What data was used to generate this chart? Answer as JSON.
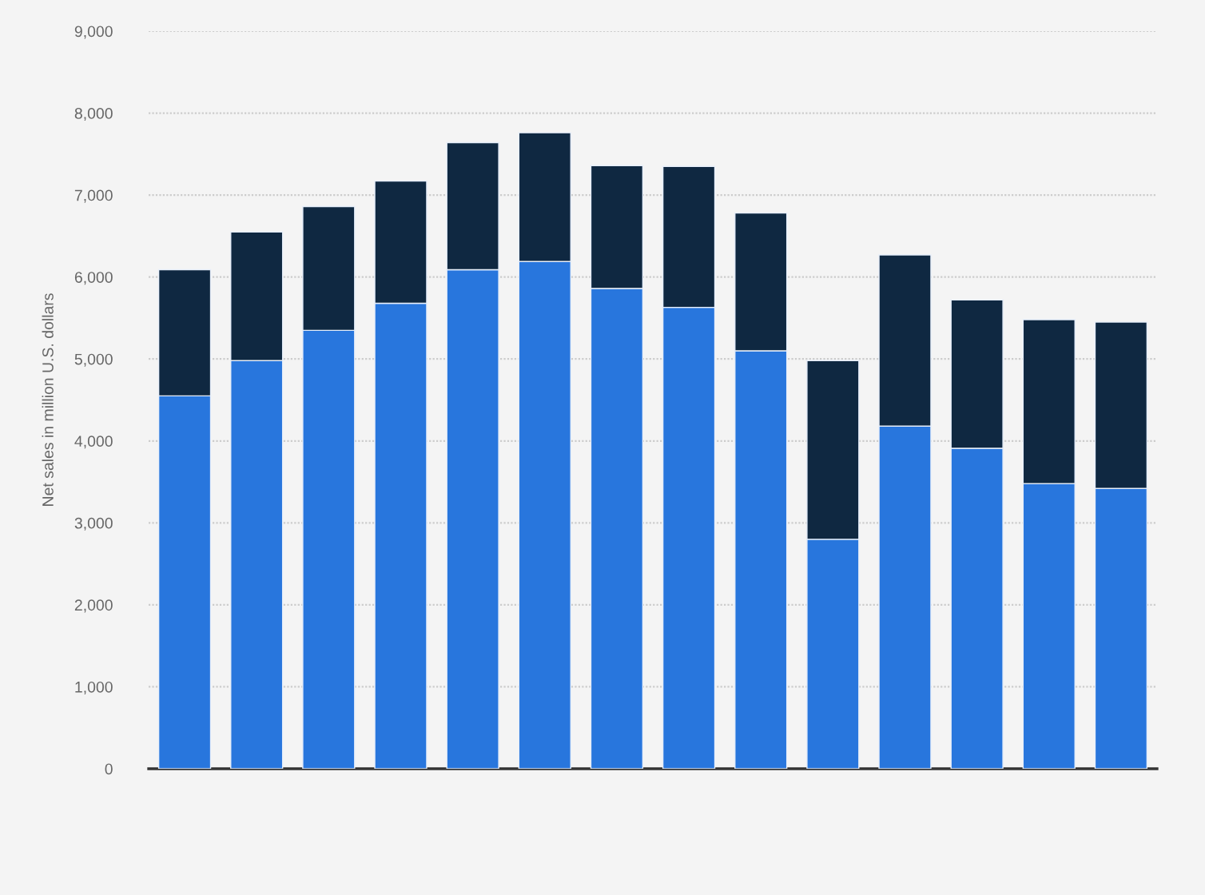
{
  "chart_data": {
    "type": "bar",
    "stacked": true,
    "ylabel": "Net sales in million U.S. dollars",
    "categories": [
      null,
      null,
      null,
      null,
      null,
      null,
      null,
      null,
      null,
      null,
      null,
      null,
      null,
      null
    ],
    "series": [
      {
        "color": "#2876dd",
        "values": [
          4550,
          4980,
          5350,
          5680,
          6090,
          6190,
          5860,
          5630,
          5100,
          2800,
          4180,
          3910,
          3480,
          3420
        ]
      },
      {
        "color": "#0f2841",
        "values": [
          1540,
          1570,
          1510,
          1490,
          1550,
          1570,
          1500,
          1720,
          1680,
          2180,
          2090,
          1810,
          2000,
          2030
        ]
      }
    ],
    "ylim": [
      0,
      9000
    ],
    "yticks": [
      0,
      {
        "value": 1000,
        "label": "1,000"
      },
      {
        "value": 2000,
        "label": "2,000"
      },
      {
        "value": 3000,
        "label": "3,000"
      },
      {
        "value": 4000,
        "label": "4,000"
      },
      {
        "value": 5000,
        "label": "5,000"
      },
      {
        "value": 6000,
        "label": "6,000"
      },
      {
        "value": 7000,
        "label": "7,000"
      },
      {
        "value": 8000,
        "label": "8,000"
      },
      {
        "value": 9000,
        "label": "9,000"
      }
    ],
    "grid": "y",
    "tick_labels": "y"
  }
}
